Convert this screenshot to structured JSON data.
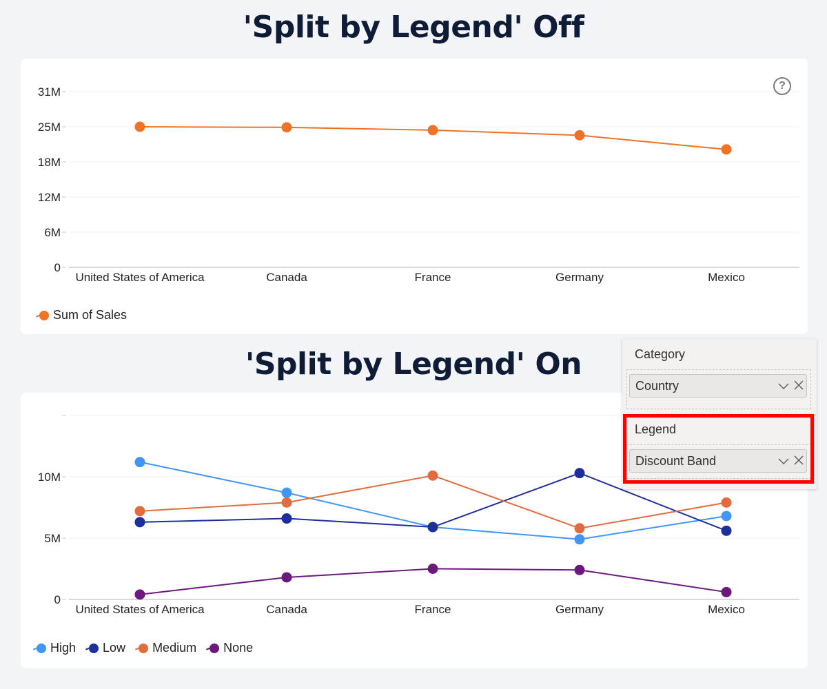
{
  "titles": {
    "top": "'Split by Legend' Off",
    "bottom": "'Split by Legend' On"
  },
  "help_icon": "question-circle-icon",
  "colors": {
    "sum_of_sales": "#f07325",
    "high": "#4195f5",
    "low": "#1c2f9a",
    "medium": "#e06c3f",
    "none": "#6b197c",
    "highlight": "#ff0000"
  },
  "field_panel": {
    "category_label": "Category",
    "category_field": "Country",
    "legend_label": "Legend",
    "legend_field": "Discount Band",
    "chevron_icon": "chevron-down-icon",
    "remove_icon": "close-icon"
  },
  "legend_top": [
    {
      "label": "Sum of Sales",
      "color": "#f07325"
    }
  ],
  "legend_bottom": [
    {
      "label": "High",
      "color": "#4195f5"
    },
    {
      "label": "Low",
      "color": "#1c2f9a"
    },
    {
      "label": "Medium",
      "color": "#e06c3f"
    },
    {
      "label": "None",
      "color": "#6b197c"
    }
  ],
  "chart_data": [
    {
      "type": "line",
      "title": "'Split by Legend' Off",
      "categories": [
        "United States of America",
        "Canada",
        "France",
        "Germany",
        "Mexico"
      ],
      "series": [
        {
          "name": "Sum of Sales",
          "color": "#f07325",
          "values": [
            24.8,
            24.7,
            24.2,
            23.3,
            20.8
          ]
        }
      ],
      "unit": "M",
      "yticks": [
        "0",
        "6M",
        "12M",
        "18M",
        "25M",
        "31M"
      ],
      "ylim": [
        0,
        31
      ],
      "xlabel": "",
      "ylabel": "",
      "grid": true,
      "legend_position": "bottom-left"
    },
    {
      "type": "line",
      "title": "'Split by Legend' On",
      "categories": [
        "United States of America",
        "Canada",
        "France",
        "Germany",
        "Mexico"
      ],
      "series": [
        {
          "name": "High",
          "color": "#4195f5",
          "values": [
            11.2,
            8.7,
            5.9,
            4.9,
            6.8
          ]
        },
        {
          "name": "Low",
          "color": "#1c2f9a",
          "values": [
            6.3,
            6.6,
            5.9,
            10.3,
            5.6
          ]
        },
        {
          "name": "Medium",
          "color": "#e06c3f",
          "values": [
            7.2,
            7.9,
            10.1,
            5.8,
            7.9
          ]
        },
        {
          "name": "None",
          "color": "#6b197c",
          "values": [
            0.4,
            1.8,
            2.5,
            2.4,
            0.6
          ]
        }
      ],
      "unit": "M",
      "yticks": [
        "0",
        "5M",
        "10M",
        ""
      ],
      "ylim": [
        0,
        15
      ],
      "xlabel": "",
      "ylabel": "",
      "grid": true,
      "legend_position": "bottom-left"
    }
  ]
}
